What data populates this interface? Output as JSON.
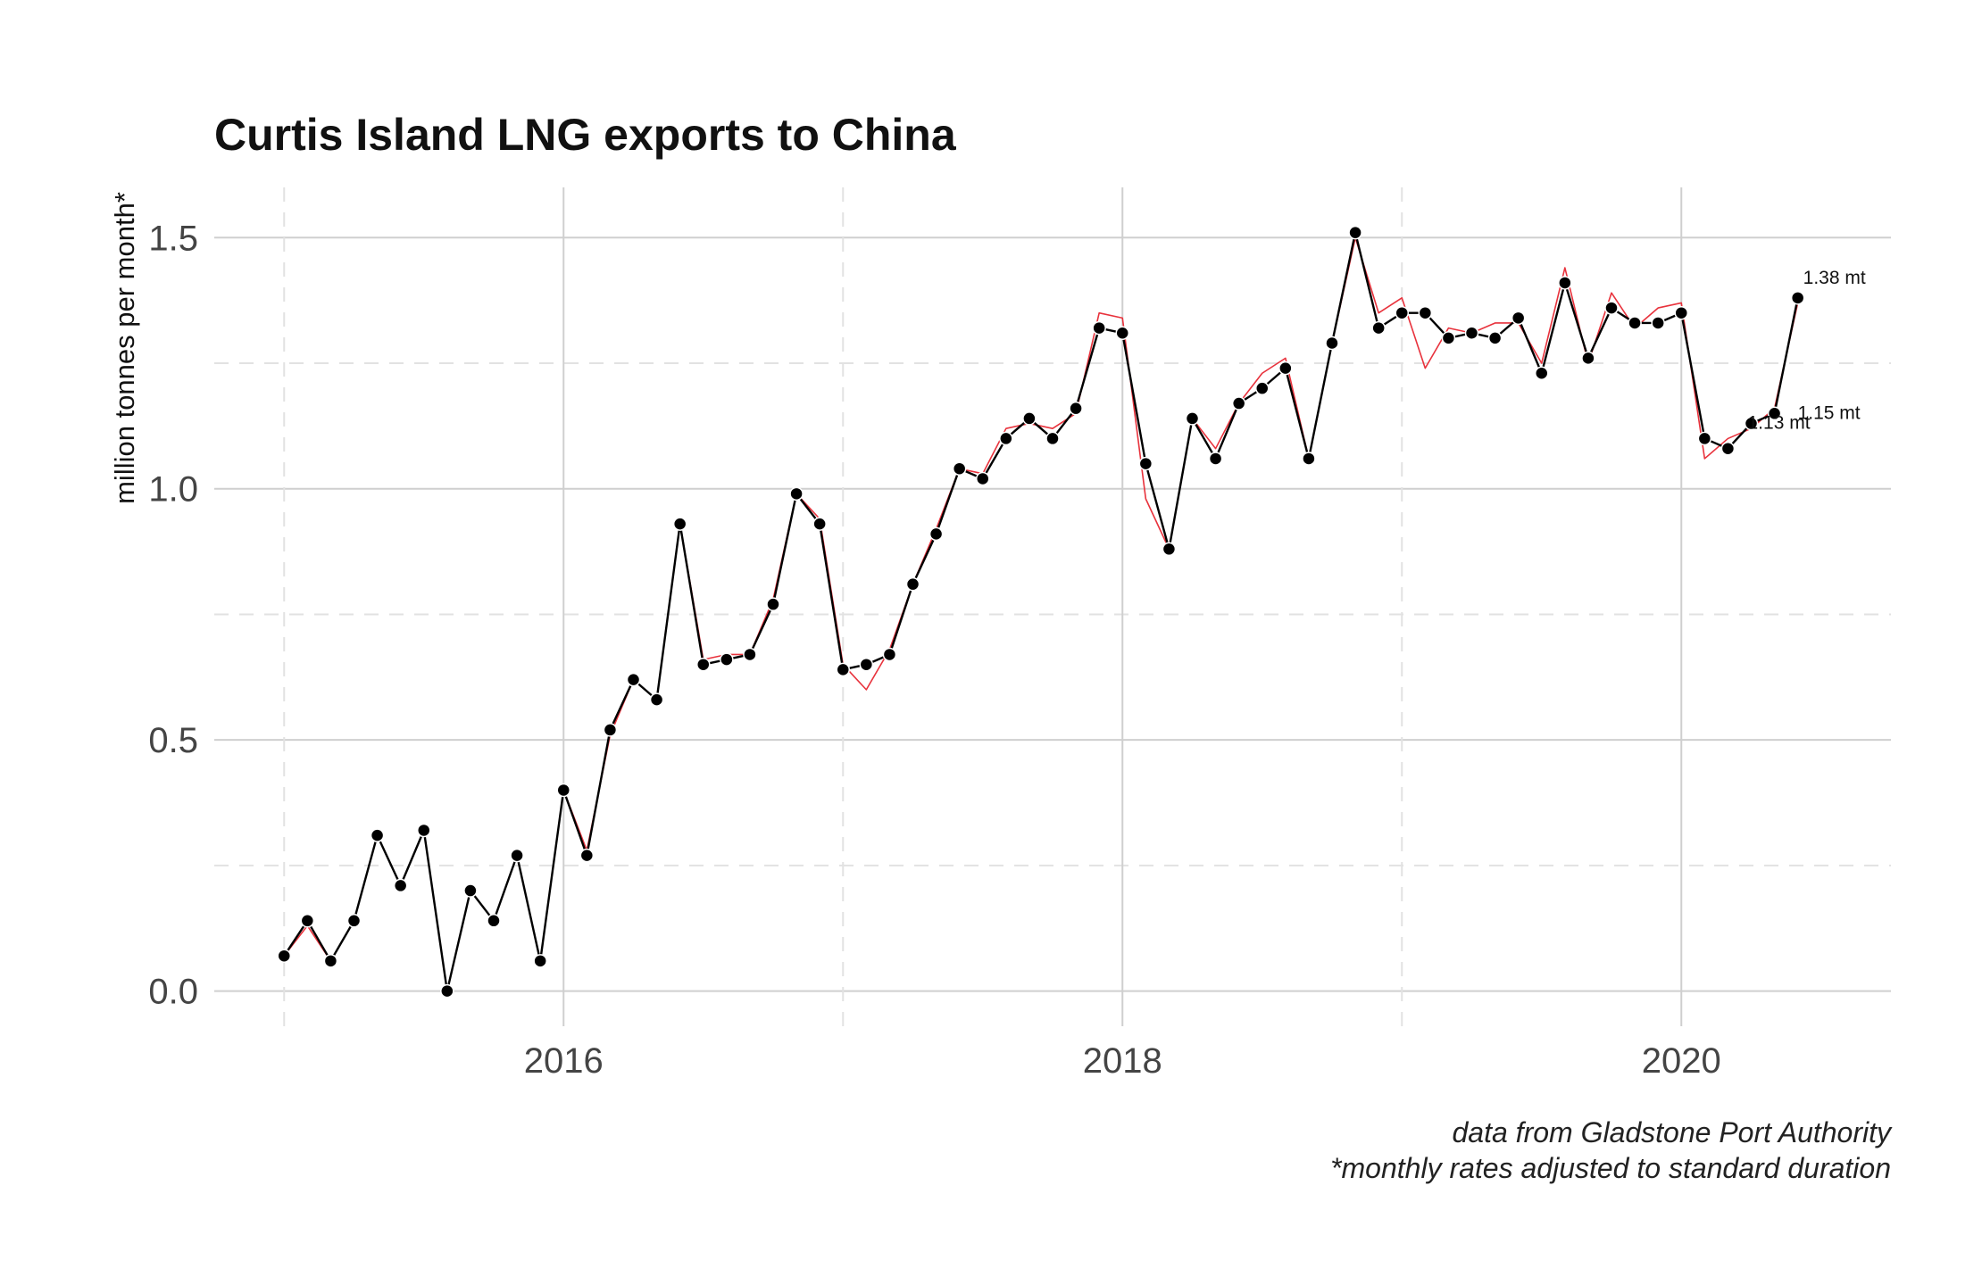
{
  "chart_data": {
    "type": "line",
    "title": "Curtis Island LNG exports to China",
    "xlabel": "",
    "ylabel": "million tonnes per month*",
    "caption": [
      "data from Gladstone Port Authority",
      "*monthly rates adjusted to standard duration"
    ],
    "xlim": [
      "2014-10",
      "2020-10"
    ],
    "ylim": [
      -0.07,
      1.6
    ],
    "x_ticks": [
      {
        "value": "2016-01",
        "label": "2016"
      },
      {
        "value": "2018-01",
        "label": "2018"
      },
      {
        "value": "2020-01",
        "label": "2020"
      }
    ],
    "x_minor_ticks": [
      "2015-01",
      "2017-01",
      "2019-01"
    ],
    "y_ticks": [
      {
        "value": 0.0,
        "label": "0.0"
      },
      {
        "value": 0.5,
        "label": "0.5"
      },
      {
        "value": 1.0,
        "label": "1.0"
      },
      {
        "value": 1.5,
        "label": "1.5"
      }
    ],
    "y_minor_ticks": [
      0.25,
      0.75,
      1.25
    ],
    "grid": true,
    "colors": {
      "series": "#000000",
      "adjusted": "#e8323c",
      "grid": "#cfcfcf",
      "background": "#ffffff"
    },
    "series": [
      {
        "key": "reported",
        "style": "black line with points",
        "x": [
          "2015-01",
          "2015-02",
          "2015-03",
          "2015-04",
          "2015-05",
          "2015-06",
          "2015-07",
          "2015-08",
          "2015-09",
          "2015-10",
          "2015-11",
          "2015-12",
          "2016-01",
          "2016-02",
          "2016-03",
          "2016-04",
          "2016-05",
          "2016-06",
          "2016-07",
          "2016-08",
          "2016-09",
          "2016-10",
          "2016-11",
          "2016-12",
          "2017-01",
          "2017-02",
          "2017-03",
          "2017-04",
          "2017-05",
          "2017-06",
          "2017-07",
          "2017-08",
          "2017-09",
          "2017-10",
          "2017-11",
          "2017-12",
          "2018-01",
          "2018-02",
          "2018-03",
          "2018-04",
          "2018-05",
          "2018-06",
          "2018-07",
          "2018-08",
          "2018-09",
          "2018-10",
          "2018-11",
          "2018-12",
          "2019-01",
          "2019-02",
          "2019-03",
          "2019-04",
          "2019-05",
          "2019-06",
          "2019-07",
          "2019-08",
          "2019-09",
          "2019-10",
          "2019-11",
          "2019-12",
          "2020-01",
          "2020-02",
          "2020-03",
          "2020-04",
          "2020-05",
          "2020-06"
        ],
        "y": [
          0.07,
          0.14,
          0.06,
          0.14,
          0.31,
          0.21,
          0.32,
          0.0,
          0.2,
          0.14,
          0.27,
          0.06,
          0.4,
          0.27,
          0.52,
          0.62,
          0.58,
          0.93,
          0.65,
          0.66,
          0.67,
          0.77,
          0.99,
          0.93,
          0.64,
          0.65,
          0.67,
          0.81,
          0.91,
          1.04,
          1.02,
          1.1,
          1.14,
          1.1,
          1.16,
          1.32,
          1.31,
          1.05,
          0.88,
          1.14,
          1.06,
          1.17,
          1.2,
          1.24,
          1.06,
          1.29,
          1.51,
          1.32,
          1.35,
          1.35,
          1.3,
          1.31,
          1.3,
          1.34,
          1.23,
          1.41,
          1.26,
          1.36,
          1.33,
          1.33,
          1.35,
          1.1,
          1.08,
          1.13,
          1.15,
          1.38
        ]
      },
      {
        "key": "adjusted",
        "style": "thin red line",
        "x": [
          "2015-01",
          "2015-02",
          "2015-03",
          "2015-04",
          "2015-05",
          "2015-06",
          "2015-07",
          "2015-08",
          "2015-09",
          "2015-10",
          "2015-11",
          "2015-12",
          "2016-01",
          "2016-02",
          "2016-03",
          "2016-04",
          "2016-05",
          "2016-06",
          "2016-07",
          "2016-08",
          "2016-09",
          "2016-10",
          "2016-11",
          "2016-12",
          "2017-01",
          "2017-02",
          "2017-03",
          "2017-04",
          "2017-05",
          "2017-06",
          "2017-07",
          "2017-08",
          "2017-09",
          "2017-10",
          "2017-11",
          "2017-12",
          "2018-01",
          "2018-02",
          "2018-03",
          "2018-04",
          "2018-05",
          "2018-06",
          "2018-07",
          "2018-08",
          "2018-09",
          "2018-10",
          "2018-11",
          "2018-12",
          "2019-01",
          "2019-02",
          "2019-03",
          "2019-04",
          "2019-05",
          "2019-06",
          "2019-07",
          "2019-08",
          "2019-09",
          "2019-10",
          "2019-11",
          "2019-12",
          "2020-01",
          "2020-02",
          "2020-03",
          "2020-04",
          "2020-05",
          "2020-06"
        ],
        "y": [
          0.07,
          0.13,
          0.06,
          0.14,
          0.31,
          0.21,
          0.32,
          0.0,
          0.2,
          0.14,
          0.27,
          0.06,
          0.4,
          0.28,
          0.51,
          0.62,
          0.58,
          0.93,
          0.66,
          0.67,
          0.67,
          0.78,
          0.99,
          0.94,
          0.65,
          0.6,
          0.68,
          0.81,
          0.92,
          1.04,
          1.03,
          1.12,
          1.13,
          1.12,
          1.15,
          1.35,
          1.34,
          0.98,
          0.88,
          1.14,
          1.08,
          1.17,
          1.23,
          1.26,
          1.06,
          1.29,
          1.5,
          1.35,
          1.38,
          1.24,
          1.32,
          1.31,
          1.33,
          1.33,
          1.25,
          1.44,
          1.25,
          1.39,
          1.32,
          1.36,
          1.37,
          1.06,
          1.1,
          1.12,
          1.16,
          1.37
        ]
      }
    ],
    "annotations": [
      {
        "x": "2020-06",
        "y": 1.38,
        "text": "1.38 mt"
      },
      {
        "x": "2020-05",
        "y": 1.15,
        "text": "1.15 mt"
      },
      {
        "x": "2020-04",
        "y": 1.13,
        "text": "1.13 mt"
      }
    ]
  }
}
